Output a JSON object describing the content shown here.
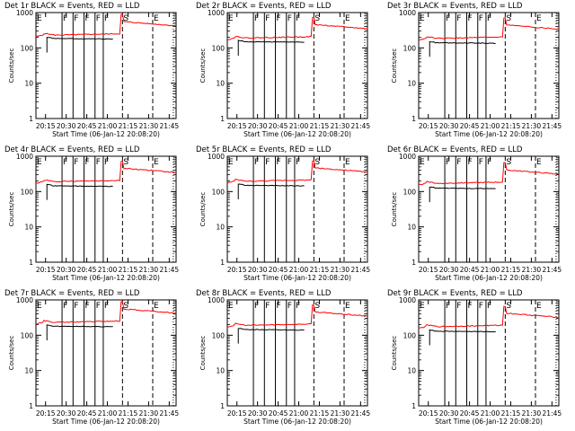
{
  "layout": {
    "rows": 3,
    "cols": 3
  },
  "common": {
    "x_ticks": [
      "20:15",
      "20:30",
      "20:45",
      "21:00",
      "21:15",
      "21:30",
      "21:45"
    ],
    "x_tick_minutes": [
      15,
      30,
      45,
      60,
      75,
      90,
      105
    ],
    "x_range_minutes": [
      8,
      110
    ],
    "y_ticks": [
      "1",
      "10",
      "100",
      "1000"
    ],
    "y_tick_values": [
      1,
      10,
      100,
      1000
    ],
    "y_scale": "log",
    "xlabel": "Start Time (06-Jan-12 20:08:20)",
    "ylabel": "Counts/sec",
    "colors": {
      "events": "#000000",
      "lld": "#ff0000",
      "frame": "#000000"
    },
    "annotation_letters": {
      "E": "E",
      "F": "F",
      "S": "S"
    }
  },
  "chart_data": [
    {
      "type": "line",
      "title": "Det 1r BLACK = Events, RED = LLD",
      "events_level": 185,
      "lld_level": 230,
      "events_start": 16,
      "events_end": 64,
      "solid_markers": [
        27,
        35,
        43,
        51,
        57
      ],
      "dashed_markers": [
        8,
        71,
        93
      ],
      "dotted_markers": [
        108
      ],
      "markers_top": [
        [
          "E",
          8
        ],
        [
          "F",
          27
        ],
        [
          "F",
          35
        ],
        [
          "F",
          43
        ],
        [
          "F",
          51
        ],
        [
          "F",
          57
        ],
        [
          "S",
          71
        ],
        [
          "E",
          93
        ]
      ]
    },
    {
      "type": "line",
      "title": "Det 2r BLACK = Events, RED = LLD",
      "events_level": 150,
      "lld_level": 190,
      "events_start": 16,
      "events_end": 64,
      "solid_markers": [
        27,
        35,
        43,
        51,
        57
      ],
      "dashed_markers": [
        8,
        71,
        93
      ],
      "dotted_markers": [
        108
      ],
      "markers_top": [
        [
          "E",
          8
        ],
        [
          "F",
          27
        ],
        [
          "F",
          35
        ],
        [
          "F",
          43
        ],
        [
          "F",
          51
        ],
        [
          "F",
          57
        ],
        [
          "S",
          71
        ],
        [
          "E",
          93
        ]
      ]
    },
    {
      "type": "line",
      "title": "Det 3r BLACK = Events, RED = LLD",
      "events_level": 140,
      "lld_level": 185,
      "events_start": 16,
      "events_end": 64,
      "solid_markers": [
        27,
        35,
        43,
        51,
        57
      ],
      "dashed_markers": [
        8,
        71,
        93
      ],
      "dotted_markers": [
        108
      ],
      "markers_top": [
        [
          "E",
          8
        ],
        [
          "F",
          27
        ],
        [
          "F",
          35
        ],
        [
          "F",
          43
        ],
        [
          "F",
          51
        ],
        [
          "F",
          57
        ],
        [
          "S",
          71
        ],
        [
          "E",
          93
        ]
      ]
    },
    {
      "type": "line",
      "title": "Det 4r BLACK = Events, RED = LLD",
      "events_level": 145,
      "lld_level": 190,
      "events_start": 16,
      "events_end": 64,
      "solid_markers": [
        27,
        35,
        43,
        51,
        57
      ],
      "dashed_markers": [
        8,
        71,
        93
      ],
      "dotted_markers": [
        108
      ],
      "markers_top": [
        [
          "E",
          8
        ],
        [
          "F",
          27
        ],
        [
          "F",
          35
        ],
        [
          "F",
          43
        ],
        [
          "F",
          51
        ],
        [
          "F",
          57
        ],
        [
          "S",
          71
        ],
        [
          "E",
          93
        ]
      ]
    },
    {
      "type": "line",
      "title": "Det 5r BLACK = Events, RED = LLD",
      "events_level": 150,
      "lld_level": 195,
      "events_start": 16,
      "events_end": 64,
      "solid_markers": [
        27,
        35,
        43,
        51,
        57
      ],
      "dashed_markers": [
        8,
        71,
        93
      ],
      "dotted_markers": [
        108
      ],
      "markers_top": [
        [
          "E",
          8
        ],
        [
          "F",
          27
        ],
        [
          "F",
          35
        ],
        [
          "F",
          43
        ],
        [
          "F",
          51
        ],
        [
          "F",
          57
        ],
        [
          "S",
          71
        ],
        [
          "E",
          93
        ]
      ]
    },
    {
      "type": "line",
      "title": "Det 6r BLACK = Events, RED = LLD",
      "events_level": 125,
      "lld_level": 170,
      "events_start": 16,
      "events_end": 64,
      "solid_markers": [
        27,
        35,
        43,
        51,
        57
      ],
      "dashed_markers": [
        8,
        71,
        93
      ],
      "dotted_markers": [
        108
      ],
      "markers_top": [
        [
          "E",
          8
        ],
        [
          "F",
          27
        ],
        [
          "F",
          35
        ],
        [
          "F",
          43
        ],
        [
          "F",
          51
        ],
        [
          "F",
          57
        ],
        [
          "S",
          71
        ],
        [
          "E",
          93
        ]
      ]
    },
    {
      "type": "line",
      "title": "Det 7r BLACK = Events, RED = LLD",
      "events_level": 180,
      "lld_level": 230,
      "events_start": 16,
      "events_end": 64,
      "solid_markers": [
        27,
        35,
        43,
        51,
        57
      ],
      "dashed_markers": [
        8,
        71,
        93
      ],
      "dotted_markers": [
        108
      ],
      "markers_top": [
        [
          "E",
          8
        ],
        [
          "F",
          27
        ],
        [
          "F",
          35
        ],
        [
          "F",
          43
        ],
        [
          "F",
          51
        ],
        [
          "F",
          57
        ],
        [
          "S",
          71
        ],
        [
          "E",
          93
        ]
      ]
    },
    {
      "type": "line",
      "title": "Det 8r BLACK = Events, RED = LLD",
      "events_level": 145,
      "lld_level": 190,
      "events_start": 16,
      "events_end": 64,
      "solid_markers": [
        27,
        35,
        43,
        51,
        57
      ],
      "dashed_markers": [
        8,
        71,
        93
      ],
      "dotted_markers": [
        108
      ],
      "markers_top": [
        [
          "E",
          8
        ],
        [
          "F",
          27
        ],
        [
          "F",
          35
        ],
        [
          "F",
          43
        ],
        [
          "F",
          51
        ],
        [
          "F",
          57
        ],
        [
          "S",
          71
        ],
        [
          "E",
          93
        ]
      ]
    },
    {
      "type": "line",
      "title": "Det 9r BLACK = Events, RED = LLD",
      "events_level": 130,
      "lld_level": 175,
      "events_start": 16,
      "events_end": 64,
      "solid_markers": [
        27,
        35,
        43,
        51,
        57
      ],
      "dashed_markers": [
        8,
        71,
        93
      ],
      "dotted_markers": [
        108
      ],
      "markers_top": [
        [
          "E",
          8
        ],
        [
          "F",
          27
        ],
        [
          "F",
          35
        ],
        [
          "F",
          43
        ],
        [
          "F",
          51
        ],
        [
          "F",
          57
        ],
        [
          "S",
          71
        ],
        [
          "E",
          93
        ]
      ]
    }
  ]
}
